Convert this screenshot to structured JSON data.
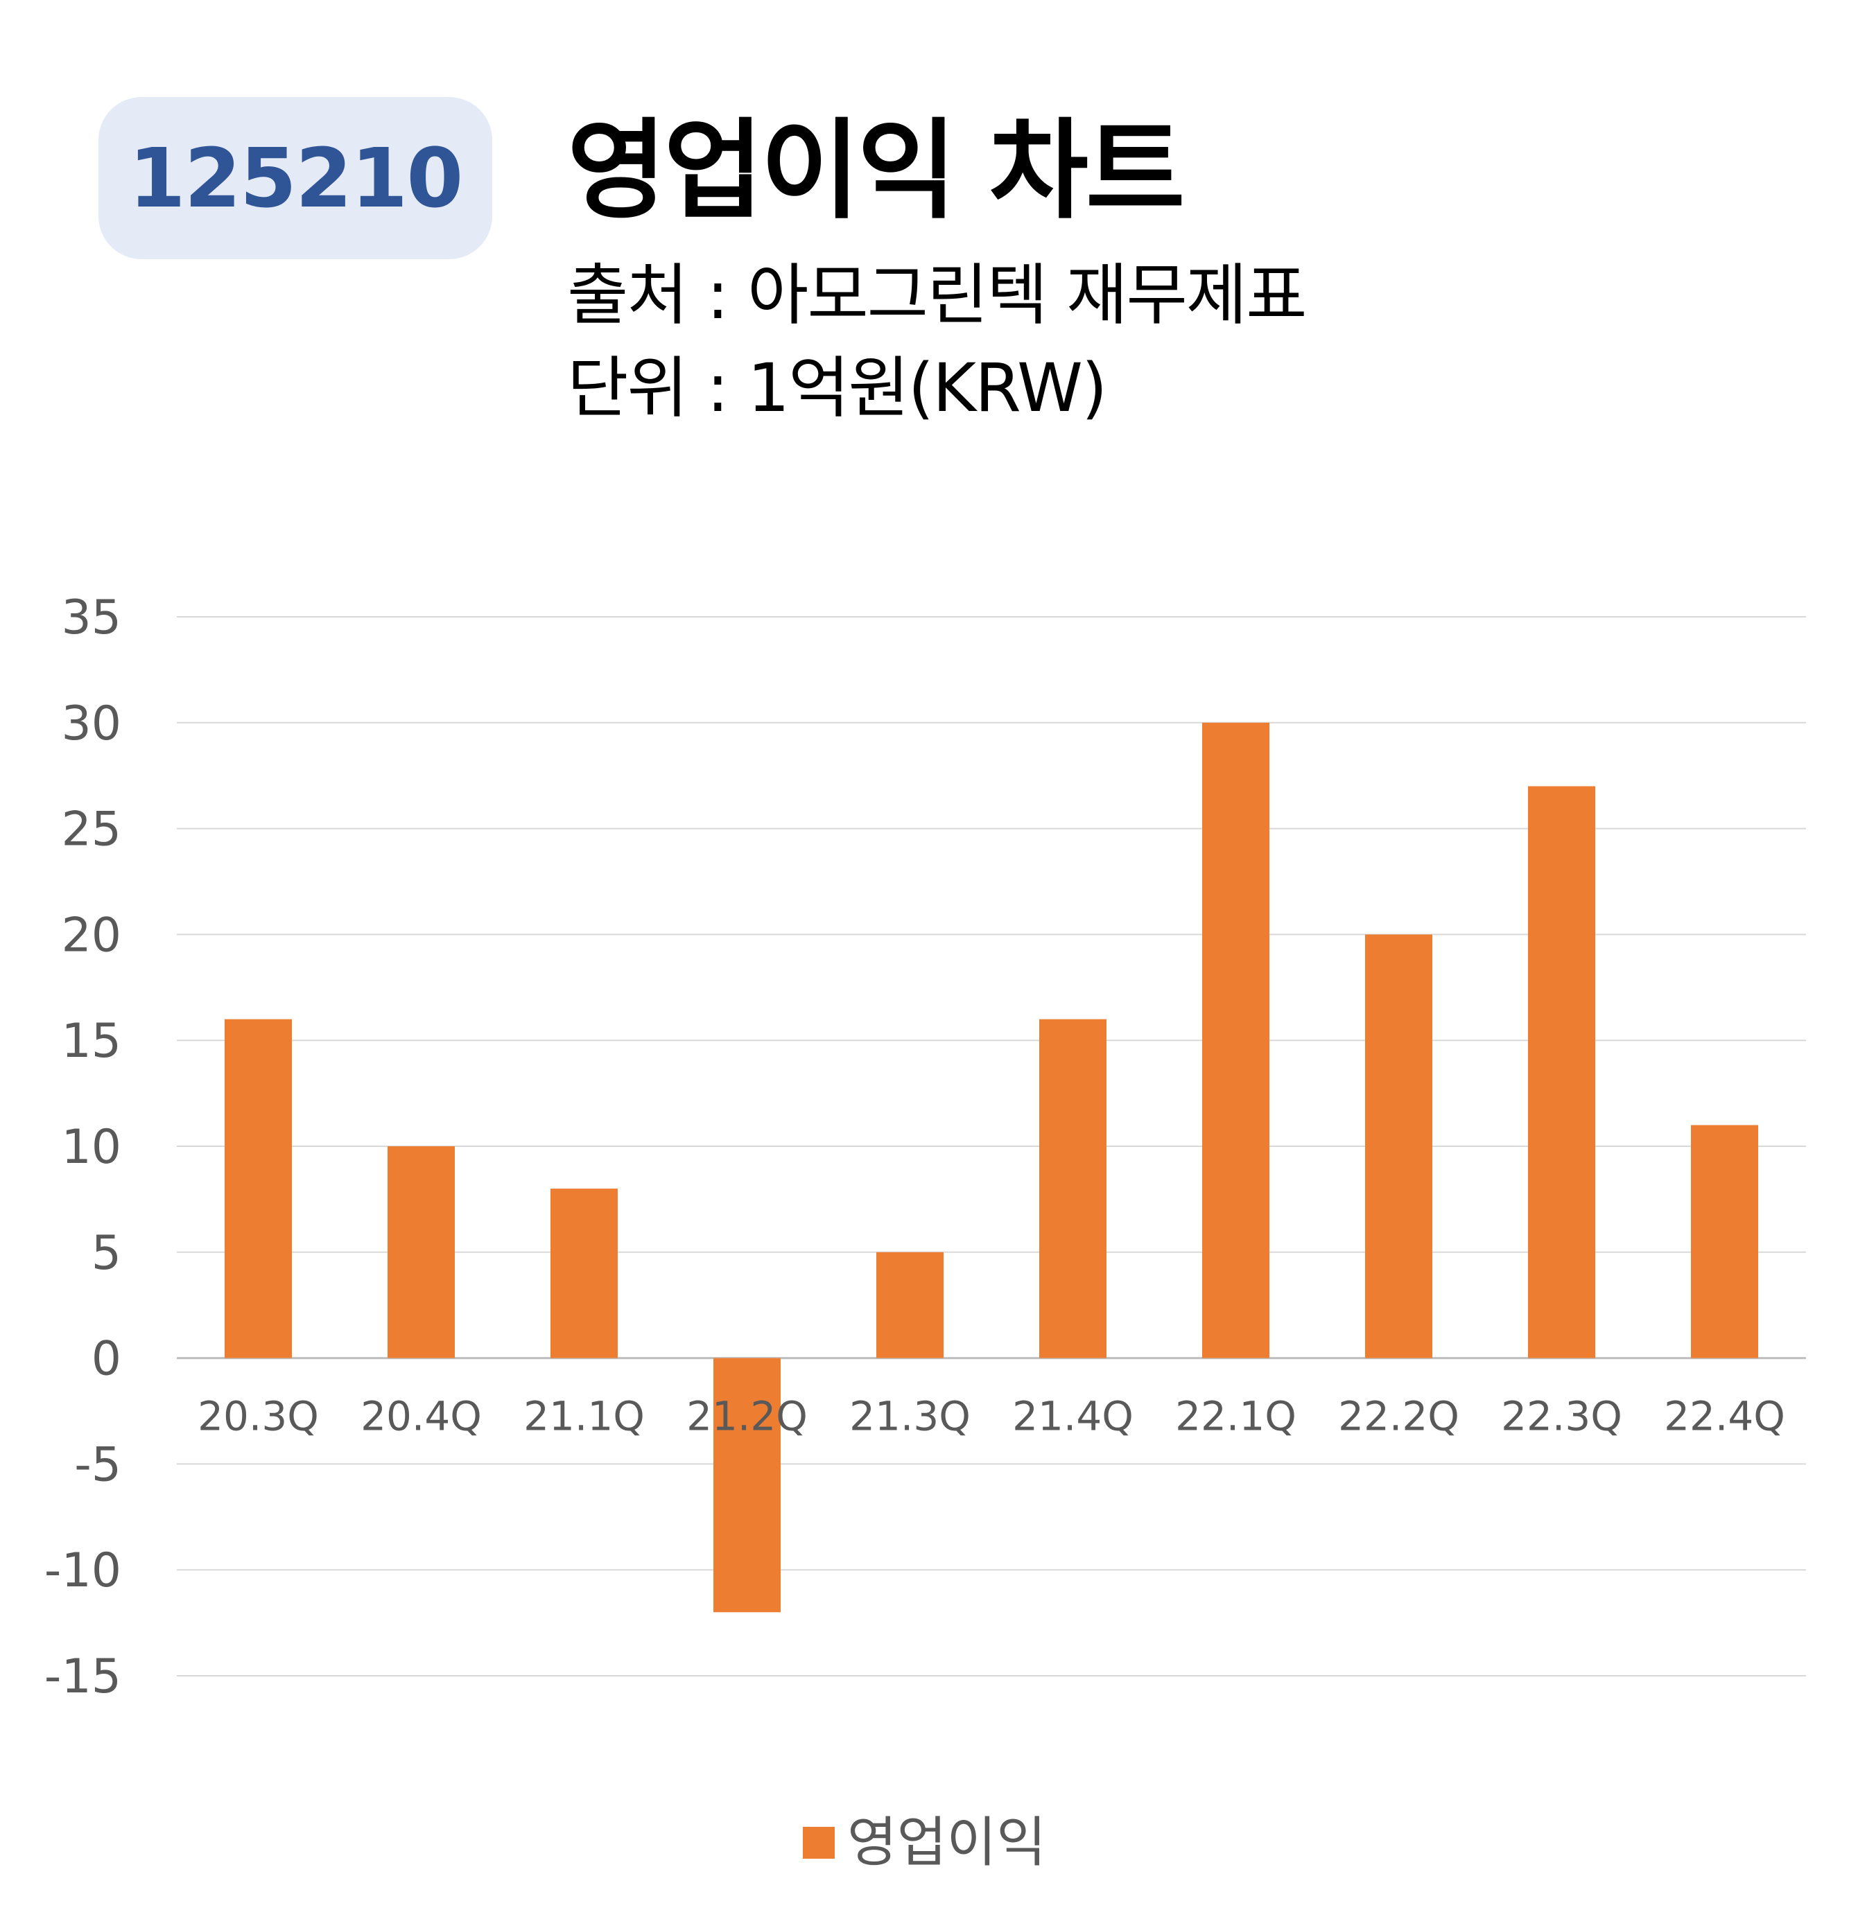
{
  "badge": "125210",
  "header": {
    "title": "영업이익 차트",
    "source": "출처 : 아모그린텍 재무제표",
    "unit": "단위 : 1억원(KRW)"
  },
  "chart_data": {
    "type": "bar",
    "categories": [
      "20.3Q",
      "20.4Q",
      "21.1Q",
      "21.2Q",
      "21.3Q",
      "21.4Q",
      "22.1Q",
      "22.2Q",
      "22.3Q",
      "22.4Q"
    ],
    "series": [
      {
        "name": "영업이익",
        "values": [
          16,
          10,
          8,
          -12,
          5,
          16,
          30,
          20,
          27,
          11
        ],
        "color": "#ed7d31"
      }
    ],
    "yticks": [
      35,
      30,
      25,
      20,
      15,
      10,
      5,
      0,
      -5,
      -10,
      -15
    ],
    "ylim": [
      -15,
      35
    ],
    "grid": true,
    "legend_position": "bottom"
  }
}
